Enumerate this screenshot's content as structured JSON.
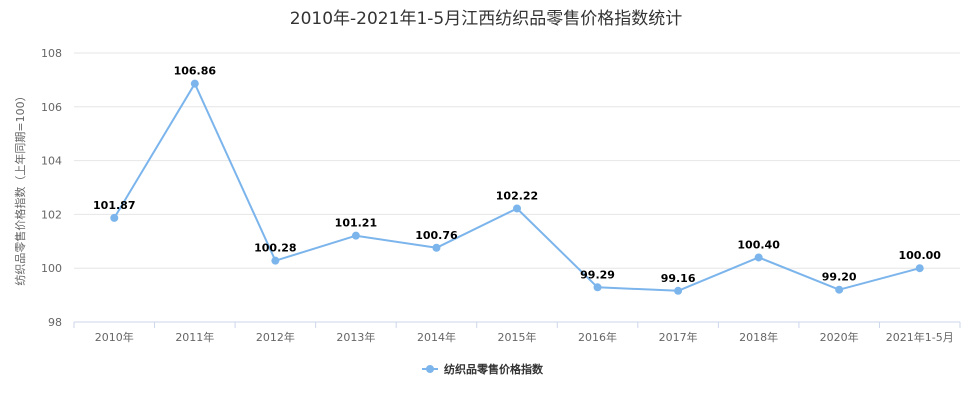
{
  "chart_data": {
    "type": "line",
    "title": "2010年-2021年1-5月江西纺织品零售价格指数统计",
    "ylabel": "纺织品零售价格指数（上年同期=100）",
    "xlabel": "",
    "categories": [
      "2010年",
      "2011年",
      "2012年",
      "2013年",
      "2014年",
      "2015年",
      "2016年",
      "2017年",
      "2018年",
      "2020年",
      "2021年1-5月"
    ],
    "series": [
      {
        "name": "纺织品零售价格指数",
        "values": [
          101.87,
          106.86,
          100.28,
          101.21,
          100.76,
          102.22,
          99.29,
          99.16,
          100.4,
          99.2,
          100.0
        ],
        "labels": [
          "101.87",
          "106.86",
          "100.28",
          "101.21",
          "100.76",
          "102.22",
          "99.29",
          "99.16",
          "100.40",
          "99.20",
          "100.00"
        ],
        "color": "#7cb5ec"
      }
    ],
    "ylim": [
      98,
      108
    ],
    "yticks": [
      "98",
      "100",
      "102",
      "104",
      "106",
      "108"
    ],
    "grid": true,
    "legend": "bottom-center"
  }
}
